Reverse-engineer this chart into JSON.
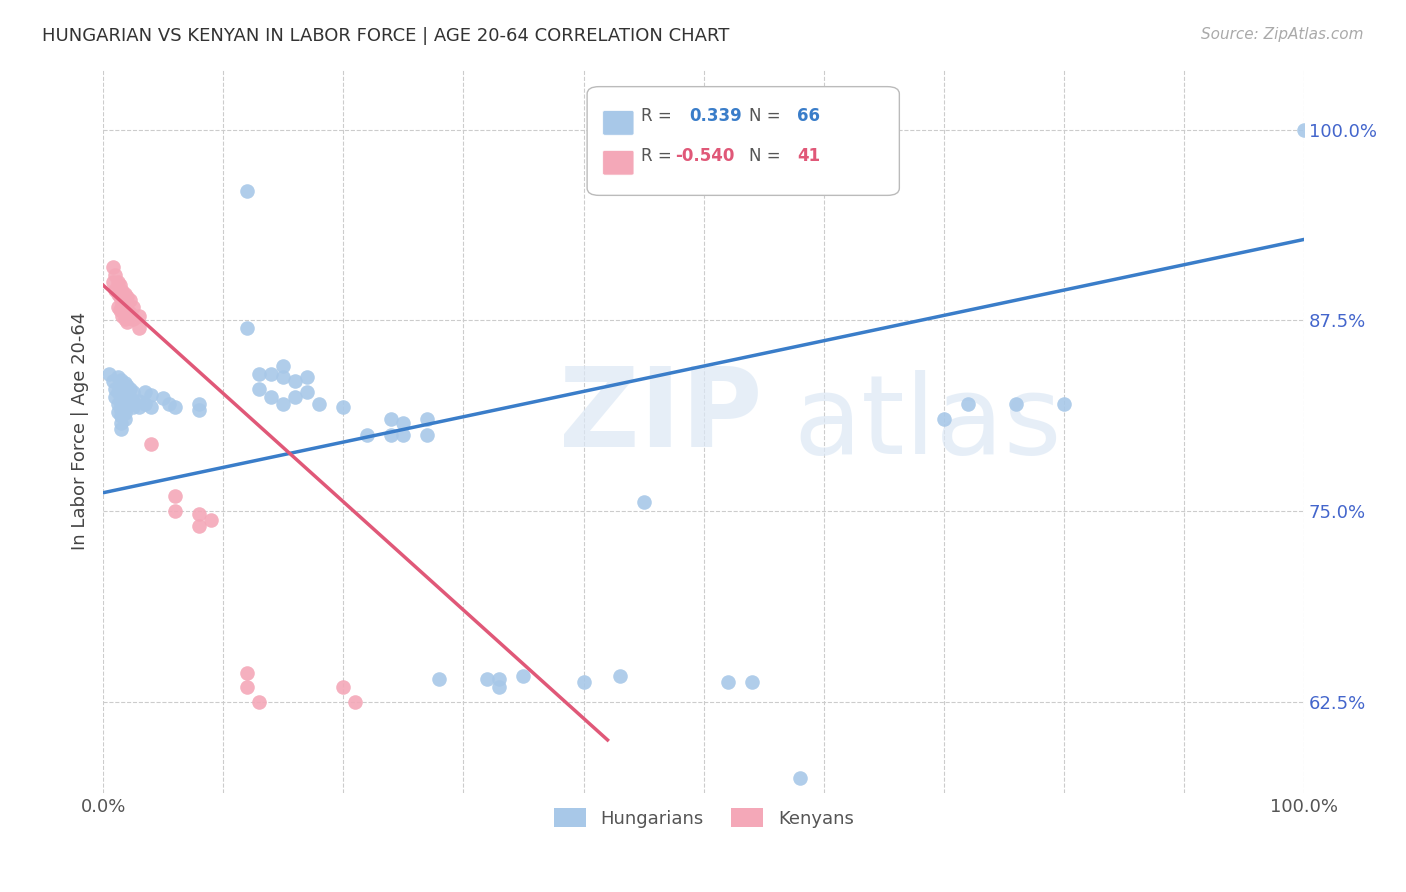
{
  "title": "HUNGARIAN VS KENYAN IN LABOR FORCE | AGE 20-64 CORRELATION CHART",
  "source": "Source: ZipAtlas.com",
  "ylabel": "In Labor Force | Age 20-64",
  "ytick_labels": [
    "100.0%",
    "87.5%",
    "75.0%",
    "62.5%"
  ],
  "ytick_values": [
    1.0,
    0.875,
    0.75,
    0.625
  ],
  "xlim": [
    0.0,
    1.0
  ],
  "ylim": [
    0.565,
    1.04
  ],
  "blue_color": "#a8c8e8",
  "pink_color": "#f4a8b8",
  "blue_line_color": "#3a7dc9",
  "pink_line_color": "#e05878",
  "ytick_color": "#4466cc",
  "blue_scatter": [
    [
      0.005,
      0.84
    ],
    [
      0.008,
      0.835
    ],
    [
      0.01,
      0.83
    ],
    [
      0.01,
      0.825
    ],
    [
      0.012,
      0.838
    ],
    [
      0.012,
      0.828
    ],
    [
      0.012,
      0.82
    ],
    [
      0.012,
      0.815
    ],
    [
      0.015,
      0.836
    ],
    [
      0.015,
      0.83
    ],
    [
      0.015,
      0.825
    ],
    [
      0.015,
      0.82
    ],
    [
      0.015,
      0.816
    ],
    [
      0.015,
      0.812
    ],
    [
      0.015,
      0.808
    ],
    [
      0.015,
      0.804
    ],
    [
      0.018,
      0.834
    ],
    [
      0.018,
      0.828
    ],
    [
      0.018,
      0.822
    ],
    [
      0.018,
      0.818
    ],
    [
      0.018,
      0.814
    ],
    [
      0.018,
      0.81
    ],
    [
      0.02,
      0.832
    ],
    [
      0.02,
      0.826
    ],
    [
      0.02,
      0.822
    ],
    [
      0.02,
      0.818
    ],
    [
      0.022,
      0.83
    ],
    [
      0.022,
      0.824
    ],
    [
      0.022,
      0.82
    ],
    [
      0.025,
      0.828
    ],
    [
      0.025,
      0.822
    ],
    [
      0.025,
      0.818
    ],
    [
      0.03,
      0.822
    ],
    [
      0.03,
      0.818
    ],
    [
      0.035,
      0.828
    ],
    [
      0.035,
      0.82
    ],
    [
      0.04,
      0.826
    ],
    [
      0.04,
      0.818
    ],
    [
      0.05,
      0.824
    ],
    [
      0.055,
      0.82
    ],
    [
      0.06,
      0.818
    ],
    [
      0.08,
      0.82
    ],
    [
      0.08,
      0.816
    ],
    [
      0.12,
      0.87
    ],
    [
      0.12,
      0.96
    ],
    [
      0.13,
      0.84
    ],
    [
      0.13,
      0.83
    ],
    [
      0.14,
      0.84
    ],
    [
      0.14,
      0.825
    ],
    [
      0.15,
      0.845
    ],
    [
      0.15,
      0.838
    ],
    [
      0.15,
      0.82
    ],
    [
      0.16,
      0.835
    ],
    [
      0.16,
      0.825
    ],
    [
      0.17,
      0.838
    ],
    [
      0.17,
      0.828
    ],
    [
      0.18,
      0.82
    ],
    [
      0.2,
      0.818
    ],
    [
      0.22,
      0.8
    ],
    [
      0.24,
      0.81
    ],
    [
      0.24,
      0.8
    ],
    [
      0.25,
      0.808
    ],
    [
      0.25,
      0.8
    ],
    [
      0.27,
      0.81
    ],
    [
      0.27,
      0.8
    ],
    [
      0.28,
      0.64
    ],
    [
      0.32,
      0.64
    ],
    [
      0.33,
      0.64
    ],
    [
      0.33,
      0.635
    ],
    [
      0.35,
      0.642
    ],
    [
      0.4,
      0.638
    ],
    [
      0.43,
      0.642
    ],
    [
      0.45,
      0.756
    ],
    [
      0.52,
      0.638
    ],
    [
      0.54,
      0.638
    ],
    [
      0.58,
      0.575
    ],
    [
      0.7,
      0.81
    ],
    [
      0.72,
      0.82
    ],
    [
      0.76,
      0.82
    ],
    [
      0.8,
      0.82
    ],
    [
      1.0,
      1.0
    ]
  ],
  "pink_scatter": [
    [
      0.008,
      0.91
    ],
    [
      0.008,
      0.9
    ],
    [
      0.01,
      0.905
    ],
    [
      0.01,
      0.895
    ],
    [
      0.012,
      0.9
    ],
    [
      0.012,
      0.892
    ],
    [
      0.012,
      0.884
    ],
    [
      0.014,
      0.898
    ],
    [
      0.014,
      0.89
    ],
    [
      0.014,
      0.882
    ],
    [
      0.016,
      0.894
    ],
    [
      0.016,
      0.886
    ],
    [
      0.016,
      0.878
    ],
    [
      0.018,
      0.892
    ],
    [
      0.018,
      0.884
    ],
    [
      0.018,
      0.876
    ],
    [
      0.02,
      0.89
    ],
    [
      0.02,
      0.882
    ],
    [
      0.02,
      0.874
    ],
    [
      0.022,
      0.888
    ],
    [
      0.022,
      0.88
    ],
    [
      0.025,
      0.884
    ],
    [
      0.025,
      0.876
    ],
    [
      0.03,
      0.878
    ],
    [
      0.03,
      0.87
    ],
    [
      0.04,
      0.794
    ],
    [
      0.06,
      0.76
    ],
    [
      0.06,
      0.75
    ],
    [
      0.08,
      0.748
    ],
    [
      0.08,
      0.74
    ],
    [
      0.09,
      0.744
    ],
    [
      0.12,
      0.644
    ],
    [
      0.12,
      0.635
    ],
    [
      0.13,
      0.625
    ],
    [
      0.2,
      0.635
    ],
    [
      0.21,
      0.625
    ]
  ],
  "blue_trendline_x": [
    0.0,
    1.0
  ],
  "blue_trendline_y": [
    0.762,
    0.928
  ],
  "pink_trendline_x": [
    0.0,
    0.42
  ],
  "pink_trendline_y": [
    0.898,
    0.6
  ]
}
